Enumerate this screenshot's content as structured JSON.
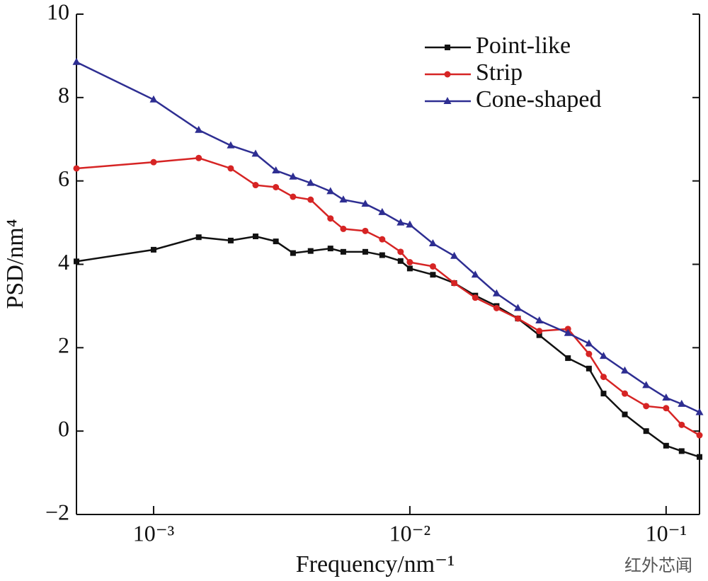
{
  "chart_data": {
    "type": "line",
    "x_label": "Frequency/nm⁻¹",
    "y_label": "PSD/nm⁴",
    "x_scale": "log",
    "xlim": [
      0.0005,
      0.135
    ],
    "ylim": [
      -2,
      10
    ],
    "xticks": [
      {
        "value": 0.001,
        "label": "10⁻³"
      },
      {
        "value": 0.01,
        "label": "10⁻²"
      },
      {
        "value": 0.1,
        "label": "10⁻¹"
      }
    ],
    "yticks": [
      {
        "value": -2,
        "label": "−2"
      },
      0,
      2,
      4,
      6,
      8,
      10
    ],
    "legend": "upper right",
    "watermark": "红外芯闻",
    "x": [
      0.0005,
      0.001,
      0.0015,
      0.002,
      0.0025,
      0.003,
      0.0035,
      0.0041,
      0.0049,
      0.0055,
      0.0067,
      0.0078,
      0.0092,
      0.01,
      0.0123,
      0.0149,
      0.018,
      0.0218,
      0.0264,
      0.032,
      0.0414,
      0.05,
      0.057,
      0.069,
      0.0836,
      0.1,
      0.115,
      0.135
    ],
    "series": [
      {
        "name": "Point-like",
        "color": "#111111",
        "marker": "square",
        "values": [
          4.07,
          4.35,
          4.65,
          4.57,
          4.67,
          4.55,
          4.27,
          4.32,
          4.38,
          4.3,
          4.3,
          4.22,
          4.08,
          3.9,
          3.75,
          3.55,
          3.25,
          3.0,
          2.7,
          2.3,
          1.75,
          1.5,
          0.9,
          0.4,
          0.0,
          -0.35,
          -0.48,
          -0.62
        ]
      },
      {
        "name": "Strip",
        "color": "#d62424",
        "marker": "circle",
        "values": [
          6.3,
          6.45,
          6.55,
          6.3,
          5.9,
          5.85,
          5.62,
          5.55,
          5.1,
          4.85,
          4.8,
          4.6,
          4.3,
          4.05,
          3.95,
          3.55,
          3.2,
          2.95,
          2.7,
          2.4,
          2.45,
          1.85,
          1.3,
          0.9,
          0.6,
          0.55,
          0.15,
          -0.1
        ]
      },
      {
        "name": "Cone-shaped",
        "color": "#2e2e92",
        "marker": "triangle",
        "values": [
          8.85,
          7.95,
          7.22,
          6.85,
          6.65,
          6.25,
          6.1,
          5.95,
          5.75,
          5.55,
          5.45,
          5.25,
          5.0,
          4.95,
          4.5,
          4.2,
          3.75,
          3.3,
          2.95,
          2.65,
          2.35,
          2.1,
          1.8,
          1.45,
          1.1,
          0.8,
          0.65,
          0.45
        ]
      }
    ]
  }
}
